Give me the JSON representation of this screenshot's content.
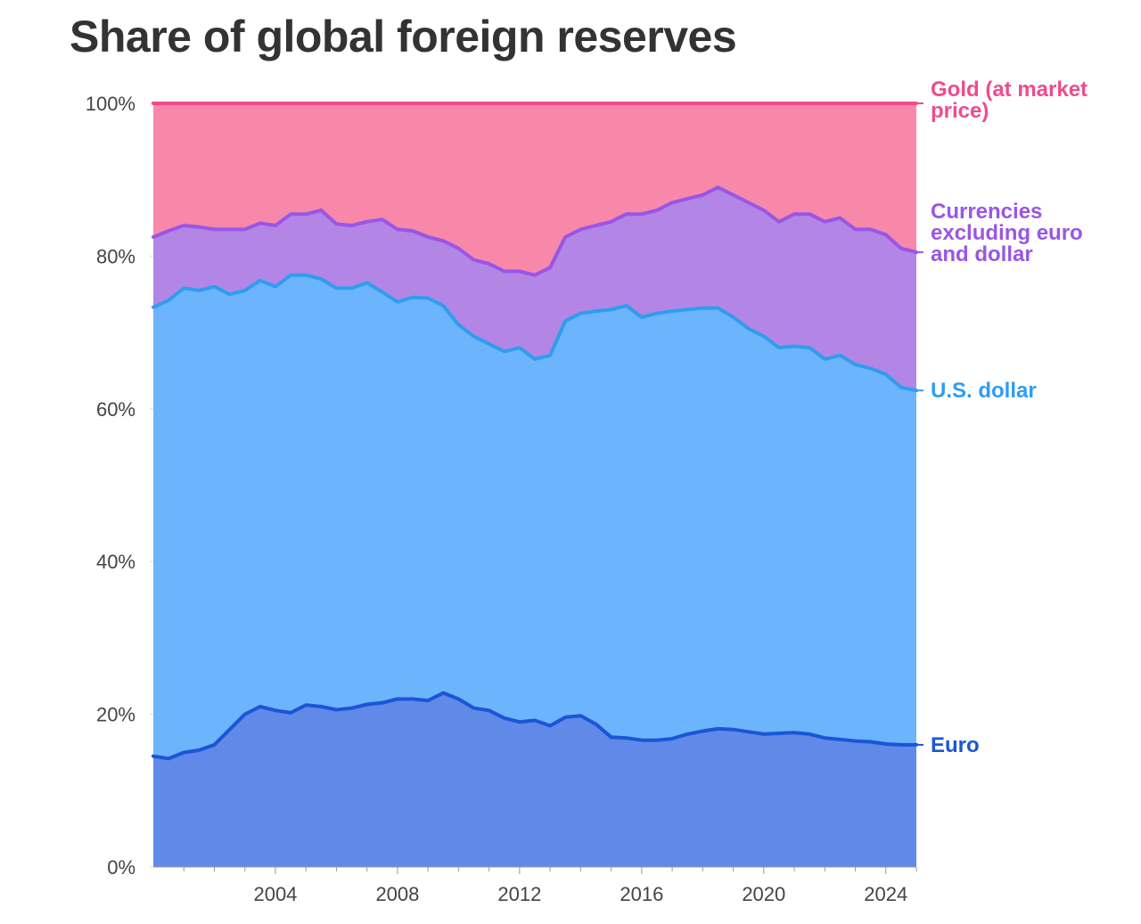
{
  "title": "Share of global foreign reserves",
  "chart_data": {
    "type": "area",
    "stacked": true,
    "title": "Share of global foreign reserves",
    "xlabel": "",
    "ylabel": "",
    "x_range": [
      2000.0,
      2025.0
    ],
    "ylim": [
      0,
      100
    ],
    "y_ticks": [
      "0%",
      "20%",
      "40%",
      "60%",
      "80%",
      "100%"
    ],
    "y_tick_values": [
      0,
      20,
      40,
      60,
      80,
      100
    ],
    "x_ticks": [
      "2004",
      "2008",
      "2012",
      "2016",
      "2020",
      "2024"
    ],
    "x_tick_values": [
      2004,
      2008,
      2012,
      2016,
      2020,
      2024
    ],
    "grid": true,
    "x": [
      2000.0,
      2000.5,
      2001.0,
      2001.5,
      2002.0,
      2002.5,
      2003.0,
      2003.5,
      2004.0,
      2004.5,
      2005.0,
      2005.5,
      2006.0,
      2006.5,
      2007.0,
      2007.5,
      2008.0,
      2008.5,
      2009.0,
      2009.5,
      2010.0,
      2010.5,
      2011.0,
      2011.5,
      2012.0,
      2012.5,
      2013.0,
      2013.5,
      2014.0,
      2014.5,
      2015.0,
      2015.5,
      2016.0,
      2016.5,
      2017.0,
      2017.5,
      2018.0,
      2018.5,
      2019.0,
      2019.5,
      2020.0,
      2020.5,
      2021.0,
      2021.5,
      2022.0,
      2022.5,
      2023.0,
      2023.5,
      2024.0,
      2024.5,
      2025.0
    ],
    "series": [
      {
        "name": "Euro",
        "color": "#1a56d6",
        "fill": "#6189e8",
        "values": [
          14.5,
          14.2,
          15.0,
          15.3,
          16.0,
          18.0,
          20.0,
          21.0,
          20.5,
          20.2,
          21.2,
          21.0,
          20.6,
          20.8,
          21.3,
          21.5,
          22.0,
          22.0,
          21.8,
          22.8,
          22.0,
          20.8,
          20.5,
          19.5,
          19.0,
          19.2,
          18.5,
          19.6,
          19.8,
          18.7,
          17.0,
          16.9,
          16.6,
          16.6,
          16.8,
          17.4,
          17.8,
          18.1,
          18.0,
          17.7,
          17.4,
          17.5,
          17.6,
          17.4,
          16.9,
          16.7,
          16.5,
          16.4,
          16.1,
          16.0,
          16.0
        ]
      },
      {
        "name": "U.S. dollar",
        "color": "#2f9df0",
        "fill": "#6cb5fd",
        "values": [
          73.3,
          74.2,
          75.8,
          75.5,
          76.0,
          75.0,
          75.5,
          76.8,
          76.0,
          77.5,
          77.5,
          77.0,
          75.8,
          75.8,
          76.5,
          75.3,
          74.0,
          74.6,
          74.5,
          73.5,
          71.0,
          69.5,
          68.5,
          67.5,
          68.0,
          66.5,
          67.0,
          71.5,
          72.5,
          72.8,
          73.0,
          73.5,
          72.0,
          72.5,
          72.8,
          73.0,
          73.2,
          73.2,
          72.0,
          70.5,
          69.5,
          68.0,
          68.2,
          68.0,
          66.5,
          67.0,
          65.8,
          65.3,
          64.5,
          62.8,
          62.4
        ]
      },
      {
        "name": "Currencies excluding euro and dollar",
        "color": "#9956e6",
        "fill": "#b386e6",
        "values": [
          82.5,
          83.3,
          84.0,
          83.8,
          83.5,
          83.5,
          83.5,
          84.3,
          84.0,
          85.5,
          85.5,
          86.0,
          84.2,
          84.0,
          84.5,
          84.8,
          83.5,
          83.3,
          82.5,
          82.0,
          81.0,
          79.5,
          79.0,
          78.0,
          78.0,
          77.5,
          78.5,
          82.5,
          83.5,
          84.0,
          84.5,
          85.5,
          85.5,
          86.0,
          87.0,
          87.5,
          88.0,
          89.0,
          88.0,
          87.0,
          86.0,
          84.5,
          85.5,
          85.5,
          84.5,
          85.0,
          83.5,
          83.5,
          82.8,
          81.0,
          80.5
        ]
      },
      {
        "name": "Gold (at market price)",
        "color": "#f04b8c",
        "fill": "#f888aa",
        "values": [
          100,
          100,
          100,
          100,
          100,
          100,
          100,
          100,
          100,
          100,
          100,
          100,
          100,
          100,
          100,
          100,
          100,
          100,
          100,
          100,
          100,
          100,
          100,
          100,
          100,
          100,
          100,
          100,
          100,
          100,
          100,
          100,
          100,
          100,
          100,
          100,
          100,
          100,
          100,
          100,
          100,
          100,
          100,
          100,
          100,
          100,
          100,
          100,
          100,
          100,
          100
        ]
      }
    ],
    "legend": "direct labels right",
    "labels": [
      {
        "series": "Gold (at market price)",
        "lines": [
          "Gold (at market",
          "price)"
        ]
      },
      {
        "series": "Currencies excluding euro and dollar",
        "lines": [
          "Currencies",
          "excluding euro",
          "and dollar"
        ]
      },
      {
        "series": "U.S. dollar",
        "lines": [
          "U.S. dollar"
        ]
      },
      {
        "series": "Euro",
        "lines": [
          "Euro"
        ]
      }
    ]
  }
}
